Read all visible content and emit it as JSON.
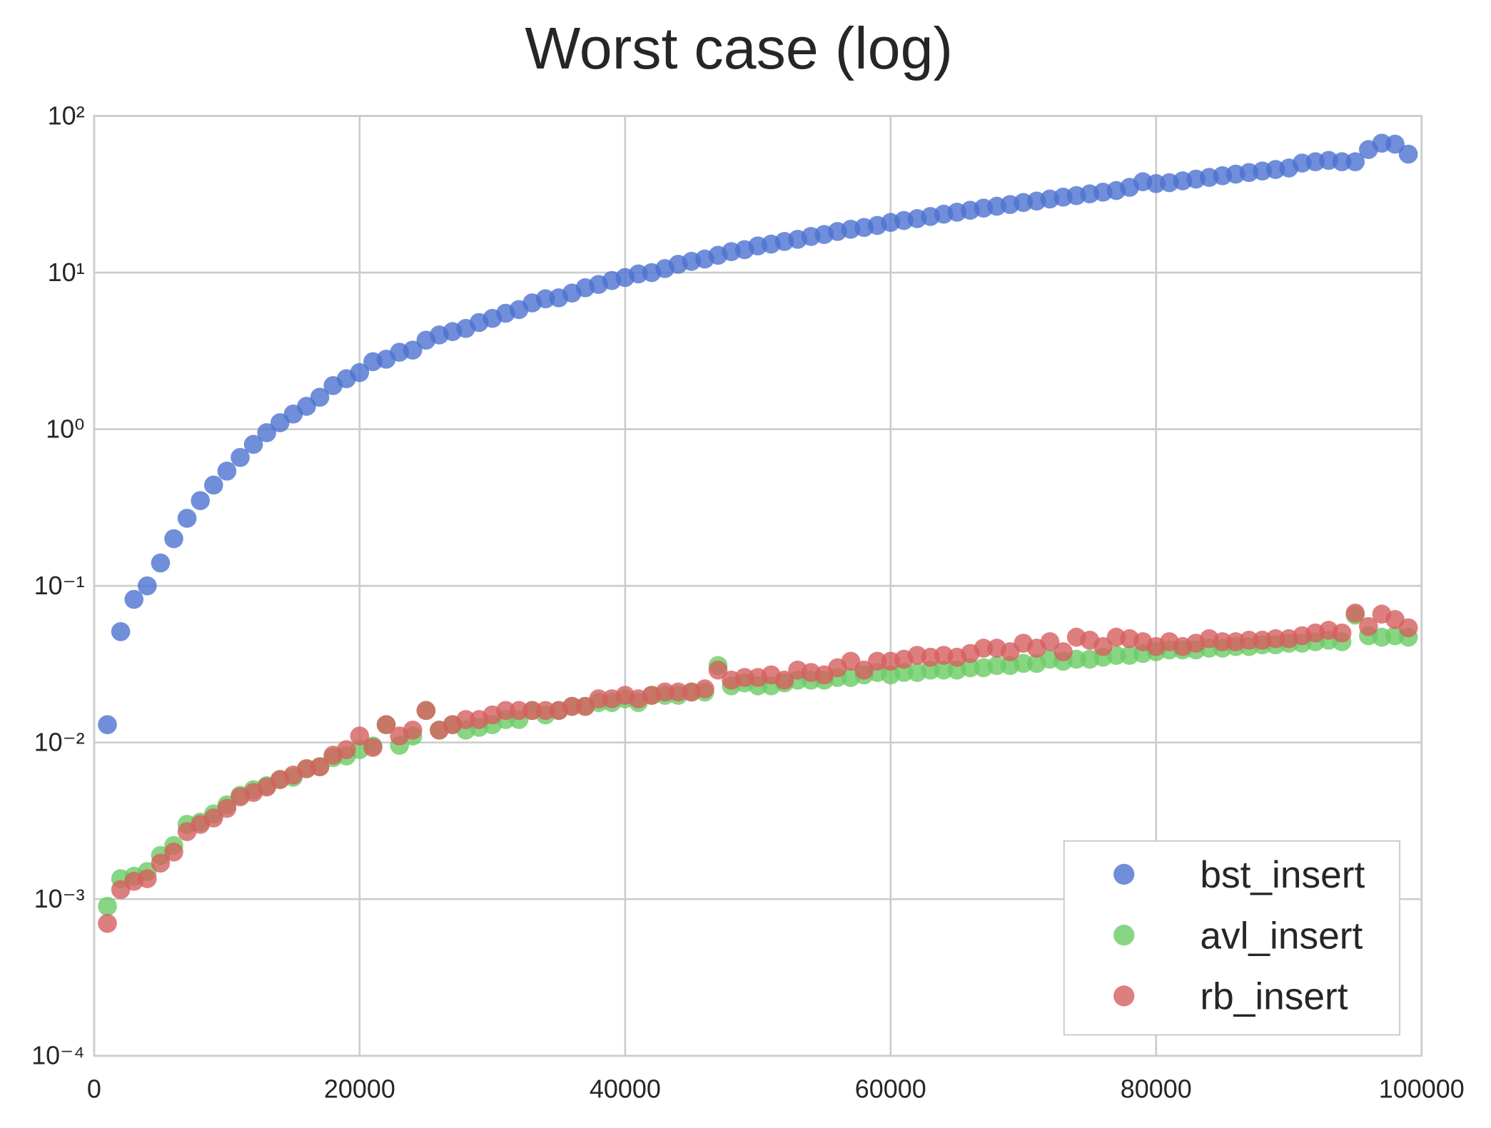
{
  "chart_data": {
    "type": "scatter",
    "title": "Worst case (log)",
    "log_y": true,
    "grid": true,
    "legend_position": "lower right",
    "x": [
      1000,
      2000,
      3000,
      4000,
      5000,
      6000,
      7000,
      8000,
      9000,
      10000,
      11000,
      12000,
      13000,
      14000,
      15000,
      16000,
      17000,
      18000,
      19000,
      20000,
      21000,
      22000,
      23000,
      24000,
      25000,
      26000,
      27000,
      28000,
      29000,
      30000,
      31000,
      32000,
      33000,
      34000,
      35000,
      36000,
      37000,
      38000,
      39000,
      40000,
      41000,
      42000,
      43000,
      44000,
      45000,
      46000,
      47000,
      48000,
      49000,
      50000,
      51000,
      52000,
      53000,
      54000,
      55000,
      56000,
      57000,
      58000,
      59000,
      60000,
      61000,
      62000,
      63000,
      64000,
      65000,
      66000,
      67000,
      68000,
      69000,
      70000,
      71000,
      72000,
      73000,
      74000,
      75000,
      76000,
      77000,
      78000,
      79000,
      80000,
      81000,
      82000,
      83000,
      84000,
      85000,
      86000,
      87000,
      88000,
      89000,
      90000,
      91000,
      92000,
      93000,
      94000,
      95000,
      96000,
      97000,
      98000,
      99000
    ],
    "series": [
      {
        "name": "bst_insert",
        "color": "#4c72d0",
        "values": [
          0.013,
          0.051,
          0.082,
          0.1,
          0.14,
          0.2,
          0.27,
          0.35,
          0.44,
          0.54,
          0.66,
          0.8,
          0.95,
          1.1,
          1.25,
          1.4,
          1.6,
          1.9,
          2.1,
          2.3,
          2.7,
          2.8,
          3.1,
          3.2,
          3.7,
          4.0,
          4.2,
          4.4,
          4.8,
          5.1,
          5.5,
          5.8,
          6.4,
          6.8,
          6.9,
          7.4,
          8.0,
          8.4,
          8.9,
          9.3,
          9.8,
          10.0,
          10.6,
          11.3,
          11.8,
          12.2,
          12.9,
          13.6,
          14.0,
          14.8,
          15.2,
          15.8,
          16.3,
          17.0,
          17.5,
          18.3,
          18.9,
          19.4,
          20.0,
          20.9,
          21.5,
          22.1,
          22.8,
          23.6,
          24.3,
          25.0,
          25.8,
          26.5,
          27.2,
          28.0,
          28.6,
          29.5,
          30.3,
          31.0,
          31.8,
          32.6,
          33.4,
          35.0,
          38.0,
          37.0,
          37.5,
          38.5,
          39.5,
          40.5,
          41.5,
          42.5,
          43.5,
          44.5,
          45.5,
          46.5,
          50,
          51,
          52,
          51,
          51,
          61,
          67,
          66,
          57
        ]
      },
      {
        "name": "avl_insert",
        "color": "#6acc65",
        "values": [
          0.0009,
          0.00135,
          0.0014,
          0.0015,
          0.0019,
          0.0022,
          0.003,
          0.0031,
          0.0035,
          0.004,
          0.0046,
          0.005,
          0.0053,
          0.0058,
          0.006,
          0.0068,
          0.007,
          0.008,
          0.0082,
          0.009,
          0.0095,
          0.013,
          0.0096,
          0.011,
          0.016,
          0.012,
          0.013,
          0.012,
          0.0125,
          0.013,
          0.014,
          0.014,
          0.016,
          0.015,
          0.016,
          0.017,
          0.017,
          0.018,
          0.018,
          0.019,
          0.018,
          0.02,
          0.02,
          0.02,
          0.021,
          0.021,
          0.031,
          0.023,
          0.024,
          0.023,
          0.023,
          0.024,
          0.025,
          0.025,
          0.025,
          0.026,
          0.026,
          0.027,
          0.028,
          0.027,
          0.028,
          0.028,
          0.029,
          0.029,
          0.029,
          0.03,
          0.03,
          0.031,
          0.031,
          0.032,
          0.032,
          0.034,
          0.033,
          0.034,
          0.034,
          0.035,
          0.036,
          0.036,
          0.037,
          0.038,
          0.039,
          0.039,
          0.039,
          0.04,
          0.04,
          0.041,
          0.041,
          0.042,
          0.042,
          0.043,
          0.043,
          0.044,
          0.045,
          0.044,
          0.065,
          0.048,
          0.047,
          0.048,
          0.047
        ]
      },
      {
        "name": "rb_insert",
        "color": "#d65f5f",
        "values": [
          0.0007,
          0.00115,
          0.0013,
          0.00135,
          0.0017,
          0.002,
          0.0027,
          0.003,
          0.0033,
          0.0038,
          0.0045,
          0.0048,
          0.0052,
          0.0058,
          0.0062,
          0.0068,
          0.007,
          0.0083,
          0.009,
          0.011,
          0.0093,
          0.013,
          0.011,
          0.012,
          0.016,
          0.012,
          0.013,
          0.014,
          0.014,
          0.015,
          0.016,
          0.016,
          0.016,
          0.016,
          0.016,
          0.017,
          0.017,
          0.019,
          0.019,
          0.02,
          0.019,
          0.02,
          0.021,
          0.021,
          0.021,
          0.022,
          0.029,
          0.025,
          0.026,
          0.026,
          0.027,
          0.025,
          0.029,
          0.028,
          0.027,
          0.03,
          0.033,
          0.029,
          0.033,
          0.033,
          0.034,
          0.036,
          0.035,
          0.036,
          0.035,
          0.037,
          0.04,
          0.04,
          0.038,
          0.043,
          0.04,
          0.044,
          0.038,
          0.047,
          0.045,
          0.041,
          0.047,
          0.046,
          0.044,
          0.041,
          0.044,
          0.041,
          0.043,
          0.046,
          0.044,
          0.044,
          0.045,
          0.045,
          0.046,
          0.046,
          0.048,
          0.05,
          0.052,
          0.05,
          0.067,
          0.055,
          0.066,
          0.061,
          0.054
        ]
      }
    ],
    "xlim": [
      0,
      100000
    ],
    "xticks": [
      0,
      20000,
      40000,
      60000,
      80000,
      100000
    ],
    "ylim": [
      0.0001,
      100
    ],
    "yticks": [
      {
        "value": 0.0001,
        "label": "10⁻⁴"
      },
      {
        "value": 0.001,
        "label": "10⁻³"
      },
      {
        "value": 0.01,
        "label": "10⁻²"
      },
      {
        "value": 0.1,
        "label": "10⁻¹"
      },
      {
        "value": 1,
        "label": "10⁰"
      },
      {
        "value": 10,
        "label": "10¹"
      },
      {
        "value": 100,
        "label": "10²"
      }
    ]
  }
}
